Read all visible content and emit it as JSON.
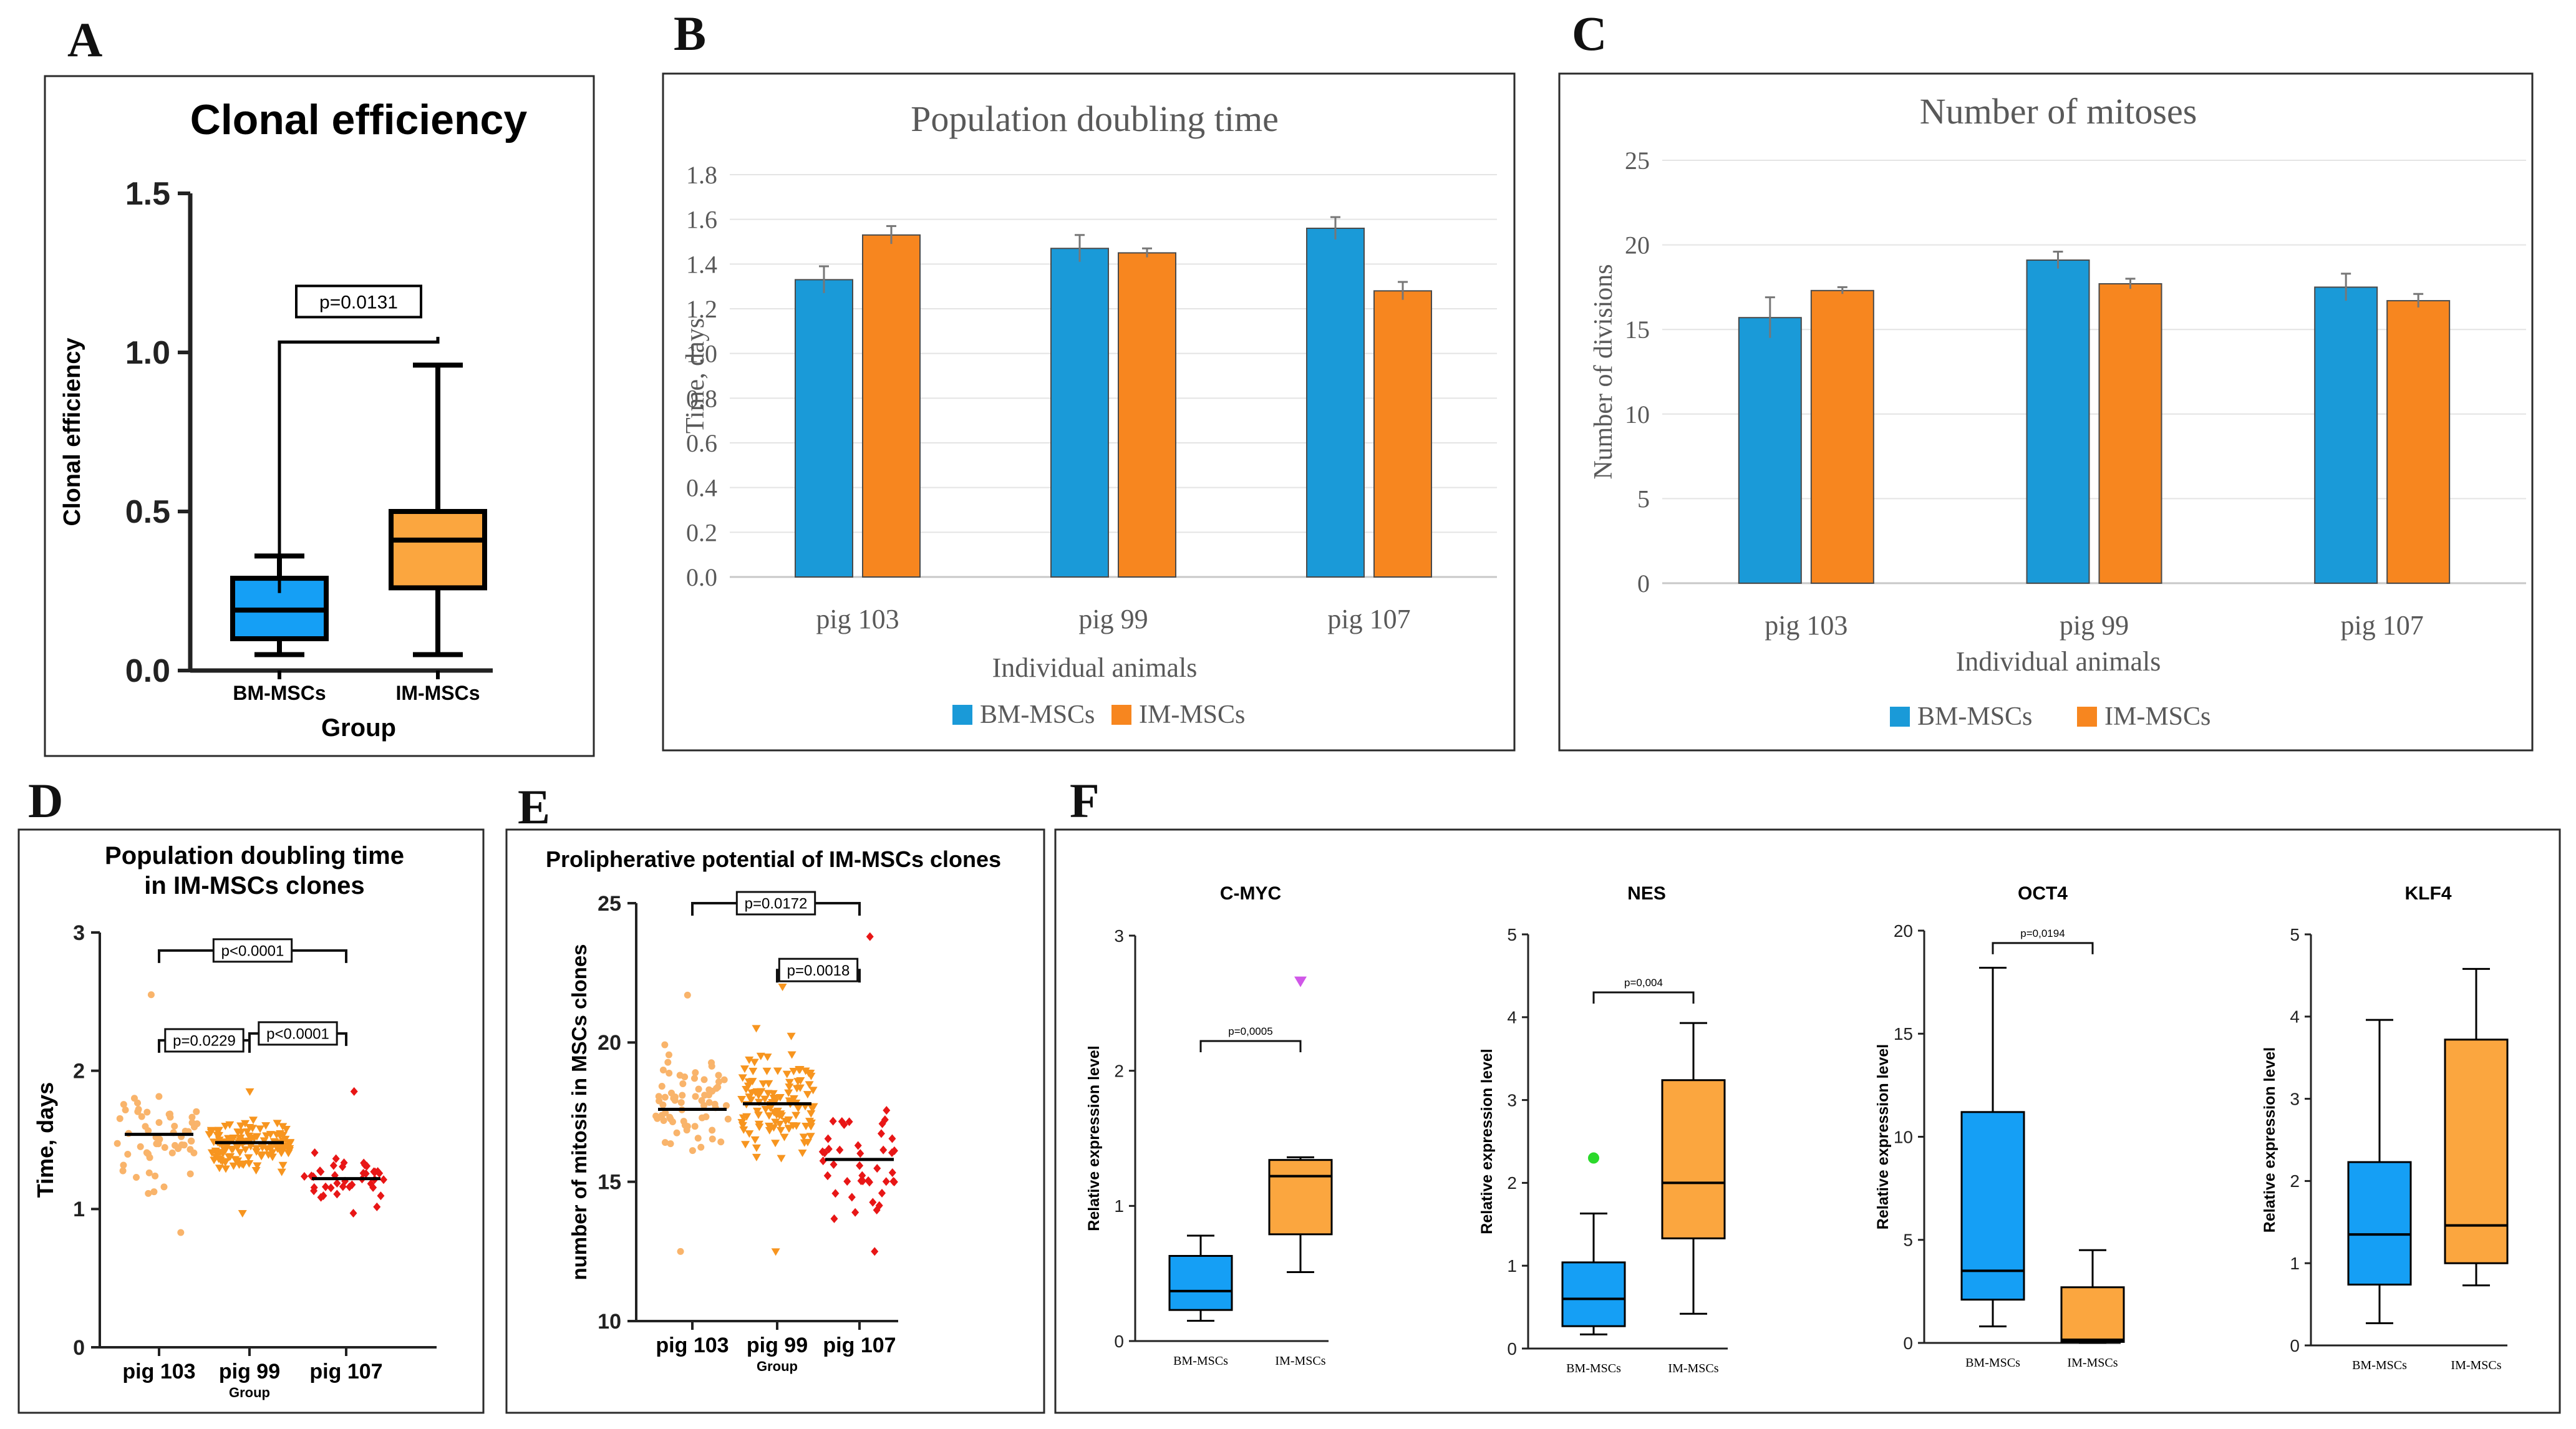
{
  "colors": {
    "bm": "#1a9ad8",
    "im": "#f7861f",
    "bmBox": "#159ff5",
    "imBox": "#fba63f",
    "grid": "#e4e4e4",
    "axis": "#222222",
    "outlierMagenta": "#d057e8",
    "outlierGreen": "#2bd92b",
    "dotLight": "#f9b46b",
    "dotMid": "#f7951f",
    "dotRed": "#e81616"
  },
  "chart_data": [
    {
      "id": "A",
      "panel": "A",
      "type": "box",
      "title": "Clonal efficiency",
      "xlabel": "Group",
      "ylabel": "Clonal efficiency",
      "ylim": [
        0,
        1.5
      ],
      "yticks": [
        "0.0",
        "0.5",
        "1.0",
        "1.5"
      ],
      "categories": [
        "BM-MSCs",
        "IM-MSCs"
      ],
      "boxes": [
        {
          "min": 0.05,
          "q1": 0.1,
          "median": 0.19,
          "q3": 0.29,
          "max": 0.36
        },
        {
          "min": 0.05,
          "q1": 0.26,
          "median": 0.41,
          "q3": 0.5,
          "max": 0.96
        }
      ],
      "brackets": [
        {
          "from": 0,
          "to": 1,
          "y": 1.16,
          "label": "p=0.0131"
        }
      ]
    },
    {
      "id": "B",
      "panel": "B",
      "type": "bar",
      "title": "Population doubling time",
      "xlabel": "Individual animals",
      "ylabel": "Time, days",
      "ylim": [
        0,
        1.8
      ],
      "yticks": [
        "0.0",
        "0.2",
        "0.4",
        "0.6",
        "0.8",
        "1.0",
        "1.2",
        "1.4",
        "1.6",
        "1.8"
      ],
      "categories": [
        "pig 103",
        "pig 99",
        "pig 107"
      ],
      "series": [
        {
          "name": "BM-MSCs",
          "values": [
            1.33,
            1.47,
            1.56
          ],
          "err": [
            0.06,
            0.06,
            0.05
          ]
        },
        {
          "name": "IM-MSCs",
          "values": [
            1.53,
            1.45,
            1.28
          ],
          "err": [
            0.04,
            0.02,
            0.04
          ]
        }
      ]
    },
    {
      "id": "C",
      "panel": "C",
      "type": "bar",
      "title": "Number of mitoses",
      "xlabel": "Individual animals",
      "ylabel": "Number of divisions",
      "ylim": [
        0,
        25
      ],
      "yticks": [
        "0",
        "5",
        "10",
        "15",
        "20",
        "25"
      ],
      "categories": [
        "pig 103",
        "pig 99",
        "pig 107"
      ],
      "series": [
        {
          "name": "BM-MSCs",
          "values": [
            15.7,
            19.1,
            17.5
          ],
          "err": [
            1.2,
            0.5,
            0.8
          ]
        },
        {
          "name": "IM-MSCs",
          "values": [
            17.3,
            17.7,
            16.7
          ],
          "err": [
            0.2,
            0.3,
            0.4
          ]
        }
      ]
    },
    {
      "id": "D",
      "panel": "D",
      "type": "scatter",
      "title": [
        "Population doubling time",
        "in IM-MSCs clones"
      ],
      "xlabel": "Group",
      "ylabel": "Time, days",
      "ylim": [
        0,
        3
      ],
      "yticks": [
        "0",
        "1",
        "2",
        "3"
      ],
      "categories": [
        "pig 103",
        "pig 99",
        "pig 107"
      ],
      "groups": [
        {
          "median": 1.54,
          "lo": 0.83,
          "hi": 2.55,
          "n": 60,
          "seed": 3
        },
        {
          "median": 1.48,
          "lo": 0.97,
          "hi": 1.85,
          "n": 130,
          "seed": 7
        },
        {
          "median": 1.22,
          "lo": 0.97,
          "hi": 1.85,
          "n": 42,
          "seed": 11
        }
      ],
      "brackets": [
        {
          "from": 0,
          "to": 1,
          "y": 2.22,
          "label": "p=0.0229"
        },
        {
          "from": 1,
          "to": 2,
          "y": 2.27,
          "label": "p<0.0001"
        },
        {
          "from": 0,
          "to": 2,
          "y": 2.87,
          "label": "p<0.0001"
        }
      ]
    },
    {
      "id": "E",
      "panel": "E",
      "type": "scatter",
      "title": "Prolipherative potential of IM-MSCs clones",
      "xlabel": "Group",
      "ylabel": "number of mitosis in MSCs clones",
      "ylim": [
        10,
        25
      ],
      "yticks": [
        "10",
        "15",
        "20",
        "25"
      ],
      "categories": [
        "pig 103",
        "pig 99",
        "pig 107"
      ],
      "groups": [
        {
          "median": 17.6,
          "lo": 12.5,
          "hi": 21.7,
          "n": 70,
          "seed": 5
        },
        {
          "median": 17.8,
          "lo": 12.5,
          "hi": 22.0,
          "n": 120,
          "seed": 9
        },
        {
          "median": 15.8,
          "lo": 12.5,
          "hi": 23.8,
          "n": 45,
          "seed": 13
        }
      ],
      "brackets": [
        {
          "from": 1,
          "to": 2,
          "y": 22.6,
          "label": "p=0.0018"
        },
        {
          "from": 0,
          "to": 2,
          "y": 25.0,
          "label": "p=0.0172"
        }
      ]
    },
    {
      "id": "F1",
      "panel": "F",
      "type": "box",
      "title": "C-MYC",
      "ylabel": "Relative expression level",
      "ylim": [
        0,
        3
      ],
      "yticks": [
        "0",
        "1",
        "2",
        "3"
      ],
      "categories": [
        "BM-MSCs",
        "IM-MSCs"
      ],
      "boxes": [
        {
          "min": 0.15,
          "q1": 0.23,
          "median": 0.37,
          "q3": 0.63,
          "max": 0.78
        },
        {
          "min": 0.51,
          "q1": 0.79,
          "median": 1.22,
          "q3": 1.34,
          "max": 1.36
        }
      ],
      "outliers": [
        {
          "box": 1,
          "y": 2.66,
          "shape": "triangle"
        }
      ],
      "brackets": [
        {
          "from": 0,
          "to": 1,
          "y": 2.22,
          "label": "p=0,0005"
        }
      ]
    },
    {
      "id": "F2",
      "panel": "F",
      "type": "box",
      "title": "NES",
      "ylabel": "Relative expression level",
      "ylim": [
        0,
        5
      ],
      "yticks": [
        "0",
        "1",
        "2",
        "3",
        "4",
        "5"
      ],
      "categories": [
        "BM-MSCs",
        "IM-MSCs"
      ],
      "boxes": [
        {
          "min": 0.17,
          "q1": 0.27,
          "median": 0.6,
          "q3": 1.04,
          "max": 1.63
        },
        {
          "min": 0.42,
          "q1": 1.33,
          "median": 2.0,
          "q3": 3.24,
          "max": 3.93
        }
      ],
      "outliers": [
        {
          "box": 0,
          "y": 2.3,
          "shape": "circle"
        }
      ],
      "brackets": [
        {
          "from": 0,
          "to": 1,
          "y": 4.3,
          "label": "p=0,004"
        }
      ]
    },
    {
      "id": "F3",
      "panel": "F",
      "type": "box",
      "title": "OCT4",
      "ylabel": "Relative expression level",
      "ylim": [
        0,
        20
      ],
      "yticks": [
        "0",
        "5",
        "10",
        "15",
        "20"
      ],
      "categories": [
        "BM-MSCs",
        "IM-MSCs"
      ],
      "boxes": [
        {
          "min": 0.8,
          "q1": 2.1,
          "median": 3.5,
          "q3": 11.2,
          "max": 18.2
        },
        {
          "min": 0.0,
          "q1": 0.05,
          "median": 0.15,
          "q3": 2.7,
          "max": 4.5
        }
      ],
      "outliers": [],
      "brackets": [
        {
          "from": 0,
          "to": 1,
          "y": 19.4,
          "label": "p=0,0194"
        }
      ]
    },
    {
      "id": "F4",
      "panel": "F",
      "type": "box",
      "title": "KLF4",
      "ylabel": "Relative expression level",
      "ylim": [
        0,
        5
      ],
      "yticks": [
        "0",
        "1",
        "2",
        "3",
        "4",
        "5"
      ],
      "categories": [
        "BM-MSCs",
        "IM-MSCs"
      ],
      "boxes": [
        {
          "min": 0.27,
          "q1": 0.74,
          "median": 1.35,
          "q3": 2.23,
          "max": 3.96
        },
        {
          "min": 0.73,
          "q1": 1.0,
          "median": 1.46,
          "q3": 3.72,
          "max": 4.58
        }
      ],
      "outliers": [],
      "brackets": []
    }
  ]
}
